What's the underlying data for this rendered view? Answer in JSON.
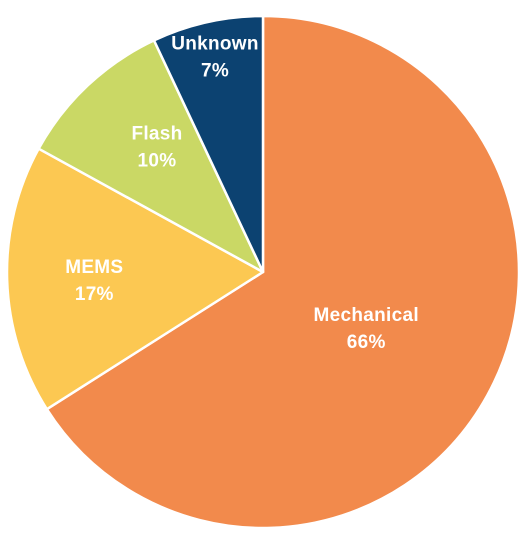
{
  "chart_data": {
    "type": "pie",
    "start": "12 o'clock",
    "direction": "clockwise",
    "slices": [
      {
        "label": "Mechanical",
        "value": 66,
        "display": "66%",
        "color": "#F28A4C"
      },
      {
        "label": "MEMS",
        "value": 17,
        "display": "17%",
        "color": "#FCC852"
      },
      {
        "label": "Flash",
        "value": 10,
        "display": "10%",
        "color": "#CAD865"
      },
      {
        "label": "Unknown",
        "value": 7,
        "display": "7%",
        "color": "#0C4271"
      }
    ]
  }
}
